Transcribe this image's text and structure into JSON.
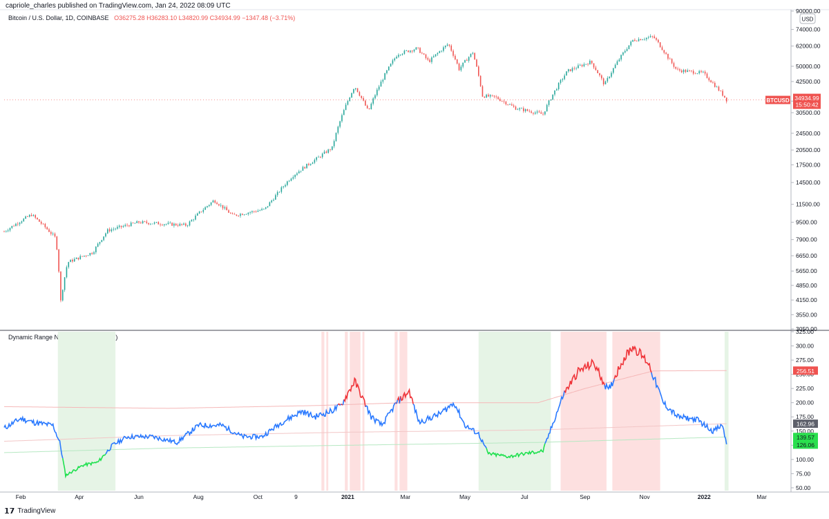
{
  "header": {
    "published": "capriole_charles published on TradingView.com, Jan 24, 2022 08:09 UTC",
    "symbol": "Bitcoin / U.S. Dollar, 1D, COINBASE",
    "ohlc": "O36275.28 H36283.10 L34820.99 C34934.99 −1347.48 (−3.71%)"
  },
  "price_axis": {
    "currency": "USD",
    "ticks": [
      "90000.00",
      "74000.00",
      "62000.00",
      "50000.00",
      "42500.00",
      "34500.00",
      "30500.00",
      "24500.00",
      "20500.00",
      "17500.00",
      "14500.00",
      "11500.00",
      "9500.00",
      "7900.00",
      "6650.00",
      "5650.00",
      "4850.00",
      "4150.00",
      "3550.00",
      "3050.00"
    ],
    "last_label": "BTCUSD",
    "last_price": "34934.99",
    "countdown": "15:50:42"
  },
  "indicator": {
    "title": "Dynamic Range NVT Signal (D, bchain)",
    "ticks": [
      "325.00",
      "300.00",
      "275.00",
      "250.00",
      "225.00",
      "200.00",
      "175.00",
      "150.00",
      "125.00",
      "100.00",
      "75.00",
      "50.00"
    ],
    "badges": [
      {
        "text": "256.51",
        "color": "#ef5350",
        "value": 256.51
      },
      {
        "text": "162.96",
        "color": "#5d606b",
        "value": 162.96
      },
      {
        "text": "139.57",
        "color": "#2adf4e",
        "value": 139.57
      },
      {
        "text": "126.06",
        "color": "#2adf4e",
        "value": 126.06
      }
    ]
  },
  "time_axis": {
    "labels": [
      "Feb",
      "Apr",
      "Jun",
      "Aug",
      "Oct",
      "9",
      "2021",
      "Mar",
      "May",
      "Jul",
      "Sep",
      "Nov",
      "2022",
      "Mar"
    ]
  },
  "footer": {
    "brand": "TradingView"
  },
  "colors": {
    "up": "#26a69a",
    "down": "#ef5350",
    "nvt_blue": "#2979ff",
    "nvt_red": "#ef3338",
    "nvt_green": "#1ee04e",
    "band_red": "#fde0e0",
    "band_green": "#e6f4e6"
  },
  "chart_data": [
    {
      "type": "candlestick",
      "title": "Bitcoin / U.S. Dollar, 1D, COINBASE",
      "scale": "log",
      "ylim": [
        3050,
        90000
      ],
      "x_range": [
        "2020-01-15",
        "2022-03-31"
      ],
      "anchors": [
        {
          "date": "2020-01-15",
          "price": 8600
        },
        {
          "date": "2020-02-12",
          "price": 10300
        },
        {
          "date": "2020-03-08",
          "price": 8000
        },
        {
          "date": "2020-03-12",
          "price": 4900
        },
        {
          "date": "2020-03-13",
          "price": 4100
        },
        {
          "date": "2020-03-20",
          "price": 6200
        },
        {
          "date": "2020-04-15",
          "price": 6900
        },
        {
          "date": "2020-04-30",
          "price": 8700
        },
        {
          "date": "2020-06-01",
          "price": 9500
        },
        {
          "date": "2020-07-20",
          "price": 9200
        },
        {
          "date": "2020-08-17",
          "price": 12000
        },
        {
          "date": "2020-09-05",
          "price": 10200
        },
        {
          "date": "2020-10-08",
          "price": 10900
        },
        {
          "date": "2020-10-21",
          "price": 12900
        },
        {
          "date": "2020-11-05",
          "price": 15500
        },
        {
          "date": "2020-12-01",
          "price": 18800
        },
        {
          "date": "2020-12-16",
          "price": 21000
        },
        {
          "date": "2021-01-08",
          "price": 40500
        },
        {
          "date": "2021-01-22",
          "price": 30800
        },
        {
          "date": "2021-02-21",
          "price": 57000
        },
        {
          "date": "2021-03-13",
          "price": 60500
        },
        {
          "date": "2021-03-25",
          "price": 52500
        },
        {
          "date": "2021-04-14",
          "price": 63500
        },
        {
          "date": "2021-04-25",
          "price": 48500
        },
        {
          "date": "2021-05-09",
          "price": 58000
        },
        {
          "date": "2021-05-19",
          "price": 36500
        },
        {
          "date": "2021-06-01",
          "price": 36000
        },
        {
          "date": "2021-06-22",
          "price": 32000
        },
        {
          "date": "2021-07-20",
          "price": 30000
        },
        {
          "date": "2021-08-14",
          "price": 47500
        },
        {
          "date": "2021-09-07",
          "price": 52500
        },
        {
          "date": "2021-09-21",
          "price": 41000
        },
        {
          "date": "2021-10-20",
          "price": 66000
        },
        {
          "date": "2021-11-10",
          "price": 68500
        },
        {
          "date": "2021-11-26",
          "price": 54000
        },
        {
          "date": "2021-12-04",
          "price": 48000
        },
        {
          "date": "2021-12-31",
          "price": 46500
        },
        {
          "date": "2022-01-21",
          "price": 36500
        },
        {
          "date": "2022-01-24",
          "price": 34934.99
        }
      ]
    },
    {
      "type": "line",
      "title": "Dynamic Range NVT Signal (D, bchain)",
      "ylim": [
        45,
        325
      ],
      "nvt": [
        {
          "date": "2020-01-15",
          "value": 155
        },
        {
          "date": "2020-02-01",
          "value": 172
        },
        {
          "date": "2020-02-15",
          "value": 165
        },
        {
          "date": "2020-03-05",
          "value": 160
        },
        {
          "date": "2020-03-12",
          "value": 130
        },
        {
          "date": "2020-03-18",
          "value": 72
        },
        {
          "date": "2020-04-05",
          "value": 90
        },
        {
          "date": "2020-04-20",
          "value": 95
        },
        {
          "date": "2020-05-05",
          "value": 125
        },
        {
          "date": "2020-05-20",
          "value": 140
        },
        {
          "date": "2020-06-15",
          "value": 140
        },
        {
          "date": "2020-07-10",
          "value": 130
        },
        {
          "date": "2020-08-01",
          "value": 160
        },
        {
          "date": "2020-08-25",
          "value": 160
        },
        {
          "date": "2020-09-15",
          "value": 140
        },
        {
          "date": "2020-10-05",
          "value": 140
        },
        {
          "date": "2020-10-25",
          "value": 165
        },
        {
          "date": "2020-11-15",
          "value": 185
        },
        {
          "date": "2020-11-28",
          "value": 175
        },
        {
          "date": "2020-12-15",
          "value": 185
        },
        {
          "date": "2020-12-25",
          "value": 195
        },
        {
          "date": "2021-01-08",
          "value": 238
        },
        {
          "date": "2021-01-25",
          "value": 175
        },
        {
          "date": "2021-02-05",
          "value": 160
        },
        {
          "date": "2021-02-20",
          "value": 200
        },
        {
          "date": "2021-03-05",
          "value": 220
        },
        {
          "date": "2021-03-15",
          "value": 165
        },
        {
          "date": "2021-04-05",
          "value": 180
        },
        {
          "date": "2021-04-20",
          "value": 200
        },
        {
          "date": "2021-05-01",
          "value": 160
        },
        {
          "date": "2021-05-15",
          "value": 145
        },
        {
          "date": "2021-05-25",
          "value": 110
        },
        {
          "date": "2021-06-15",
          "value": 105
        },
        {
          "date": "2021-07-01",
          "value": 110
        },
        {
          "date": "2021-07-20",
          "value": 115
        },
        {
          "date": "2021-08-10",
          "value": 215
        },
        {
          "date": "2021-08-25",
          "value": 255
        },
        {
          "date": "2021-09-10",
          "value": 270
        },
        {
          "date": "2021-09-25",
          "value": 220
        },
        {
          "date": "2021-10-08",
          "value": 270
        },
        {
          "date": "2021-10-20",
          "value": 300
        },
        {
          "date": "2021-11-05",
          "value": 270
        },
        {
          "date": "2021-11-20",
          "value": 200
        },
        {
          "date": "2021-12-05",
          "value": 175
        },
        {
          "date": "2021-12-25",
          "value": 170
        },
        {
          "date": "2022-01-10",
          "value": 150
        },
        {
          "date": "2022-01-20",
          "value": 160
        },
        {
          "date": "2022-01-24",
          "value": 126
        }
      ],
      "upper_band": [
        {
          "date": "2020-01-15",
          "value": 193
        },
        {
          "date": "2020-07-01",
          "value": 190
        },
        {
          "date": "2020-12-01",
          "value": 195
        },
        {
          "date": "2021-03-01",
          "value": 200
        },
        {
          "date": "2021-07-15",
          "value": 200
        },
        {
          "date": "2021-09-01",
          "value": 225
        },
        {
          "date": "2021-11-10",
          "value": 256
        },
        {
          "date": "2022-01-24",
          "value": 256.51
        }
      ],
      "mid_line": [
        {
          "date": "2020-01-15",
          "value": 132
        },
        {
          "date": "2020-07-01",
          "value": 142
        },
        {
          "date": "2021-01-01",
          "value": 148
        },
        {
          "date": "2021-07-15",
          "value": 152
        },
        {
          "date": "2022-01-24",
          "value": 162.96
        }
      ],
      "lower_band": [
        {
          "date": "2020-01-15",
          "value": 112
        },
        {
          "date": "2020-07-01",
          "value": 120
        },
        {
          "date": "2021-01-01",
          "value": 125
        },
        {
          "date": "2021-07-15",
          "value": 130
        },
        {
          "date": "2022-01-24",
          "value": 139.57
        }
      ],
      "red_bands": [
        [
          "2020-12-05",
          "2020-12-08"
        ],
        [
          "2020-12-10",
          "2020-12-12"
        ],
        [
          "2020-12-29",
          "2021-01-01"
        ],
        [
          "2021-01-03",
          "2021-01-14"
        ],
        [
          "2021-01-16",
          "2021-01-18"
        ],
        [
          "2021-02-18",
          "2021-02-21"
        ],
        [
          "2021-02-23",
          "2021-03-03"
        ],
        [
          "2021-08-07",
          "2021-09-23"
        ],
        [
          "2021-09-29",
          "2021-11-17"
        ]
      ],
      "green_bands": [
        [
          "2020-03-10",
          "2020-05-08"
        ],
        [
          "2021-05-15",
          "2021-07-28"
        ],
        [
          "2022-01-22",
          "2022-01-26"
        ]
      ]
    }
  ]
}
